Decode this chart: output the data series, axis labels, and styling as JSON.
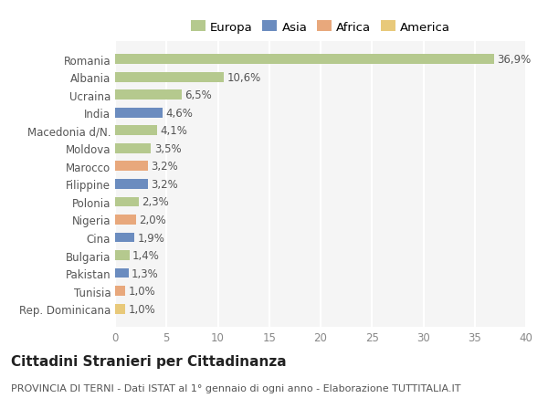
{
  "categories": [
    "Rep. Dominicana",
    "Tunisia",
    "Pakistan",
    "Bulgaria",
    "Cina",
    "Nigeria",
    "Polonia",
    "Filippine",
    "Marocco",
    "Moldova",
    "Macedonia d/N.",
    "India",
    "Ucraina",
    "Albania",
    "Romania"
  ],
  "values": [
    1.0,
    1.0,
    1.3,
    1.4,
    1.9,
    2.0,
    2.3,
    3.2,
    3.2,
    3.5,
    4.1,
    4.6,
    6.5,
    10.6,
    36.9
  ],
  "labels": [
    "1,0%",
    "1,0%",
    "1,3%",
    "1,4%",
    "1,9%",
    "2,0%",
    "2,3%",
    "3,2%",
    "3,2%",
    "3,5%",
    "4,1%",
    "4,6%",
    "6,5%",
    "10,6%",
    "36,9%"
  ],
  "colors": [
    "#e8c97a",
    "#e8a87c",
    "#6b8cbf",
    "#b5c98e",
    "#6b8cbf",
    "#e8a87c",
    "#b5c98e",
    "#6b8cbf",
    "#e8a87c",
    "#b5c98e",
    "#b5c98e",
    "#6b8cbf",
    "#b5c98e",
    "#b5c98e",
    "#b5c98e"
  ],
  "legend_labels": [
    "Europa",
    "Asia",
    "Africa",
    "America"
  ],
  "legend_colors": [
    "#b5c98e",
    "#6b8cbf",
    "#e8a87c",
    "#e8c97a"
  ],
  "xlim": [
    0,
    40
  ],
  "xticks": [
    0,
    5,
    10,
    15,
    20,
    25,
    30,
    35,
    40
  ],
  "title": "Cittadini Stranieri per Cittadinanza",
  "subtitle": "PROVINCIA DI TERNI - Dati ISTAT al 1° gennaio di ogni anno - Elaborazione TUTTITALIA.IT",
  "background_color": "#ffffff",
  "plot_bg_color": "#f5f5f5",
  "grid_color": "#ffffff",
  "bar_height": 0.55,
  "label_fontsize": 8.5,
  "ytick_fontsize": 8.5,
  "xtick_fontsize": 8.5,
  "title_fontsize": 11,
  "subtitle_fontsize": 8,
  "legend_fontsize": 9.5
}
